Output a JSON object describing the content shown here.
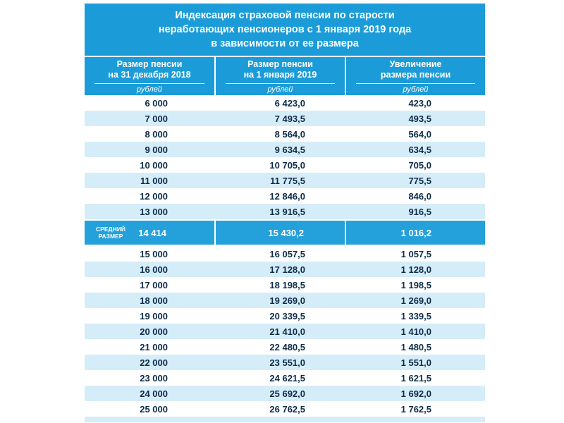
{
  "title_lines": [
    "Индексация страховой пенсии по старости",
    "неработающих пенсионеров с 1 января 2019 года",
    "в зависимости от ее размера"
  ],
  "colors": {
    "header_blue": "#1b9cd8",
    "highlight_blue": "#24a0da",
    "row_alt_blue": "#d5edf8",
    "text_dark": "#0d2c4a",
    "text_white": "#ffffff"
  },
  "chart_data": {
    "type": "table",
    "title": "Индексация страховой пенсии по старости неработающих пенсионеров с 1 января 2019 года в зависимости от ее размера",
    "columns": [
      {
        "line1": "Размер пенсии",
        "line2": "на 31 декабря 2018",
        "unit": "рублей"
      },
      {
        "line1": "Размер пенсии",
        "line2": "на 1 января 2019",
        "unit": "рублей"
      },
      {
        "line1": "Увеличение",
        "line2": "размера пенсии",
        "unit": "рублей"
      }
    ],
    "rows": [
      {
        "pension_2018": "6 000",
        "pension_2019": "6 423,0",
        "increase": "423,0"
      },
      {
        "pension_2018": "7 000",
        "pension_2019": "7 493,5",
        "increase": "493,5"
      },
      {
        "pension_2018": "8 000",
        "pension_2019": "8 564,0",
        "increase": "564,0"
      },
      {
        "pension_2018": "9 000",
        "pension_2019": "9 634,5",
        "increase": "634,5"
      },
      {
        "pension_2018": "10 000",
        "pension_2019": "10 705,0",
        "increase": "705,0"
      },
      {
        "pension_2018": "11 000",
        "pension_2019": "11 775,5",
        "increase": "775,5"
      },
      {
        "pension_2018": "12 000",
        "pension_2019": "12 846,0",
        "increase": "846,0"
      },
      {
        "pension_2018": "13 000",
        "pension_2019": "13 916,5",
        "increase": "916,5"
      },
      {
        "row_label": "средний размер",
        "pension_2018": "14 414",
        "pension_2019": "15 430,2",
        "increase": "1 016,2",
        "highlight": true
      },
      {
        "pension_2018": "15 000",
        "pension_2019": "16 057,5",
        "increase": "1 057,5"
      },
      {
        "pension_2018": "16 000",
        "pension_2019": "17 128,0",
        "increase": "1 128,0"
      },
      {
        "pension_2018": "17 000",
        "pension_2019": "18 198,5",
        "increase": "1 198,5"
      },
      {
        "pension_2018": "18 000",
        "pension_2019": "19 269,0",
        "increase": "1 269,0"
      },
      {
        "pension_2018": "19 000",
        "pension_2019": "20 339,5",
        "increase": "1 339,5"
      },
      {
        "pension_2018": "20 000",
        "pension_2019": "21 410,0",
        "increase": "1 410,0"
      },
      {
        "pension_2018": "21 000",
        "pension_2019": "22 480,5",
        "increase": "1 480,5"
      },
      {
        "pension_2018": "22 000",
        "pension_2019": "23 551,0",
        "increase": "1 551,0"
      },
      {
        "pension_2018": "23 000",
        "pension_2019": "24 621,5",
        "increase": "1 621,5"
      },
      {
        "pension_2018": "24 000",
        "pension_2019": "25 692,0",
        "increase": "1 692,0"
      },
      {
        "pension_2018": "25 000",
        "pension_2019": "26 762,5",
        "increase": "1 762,5"
      }
    ]
  }
}
